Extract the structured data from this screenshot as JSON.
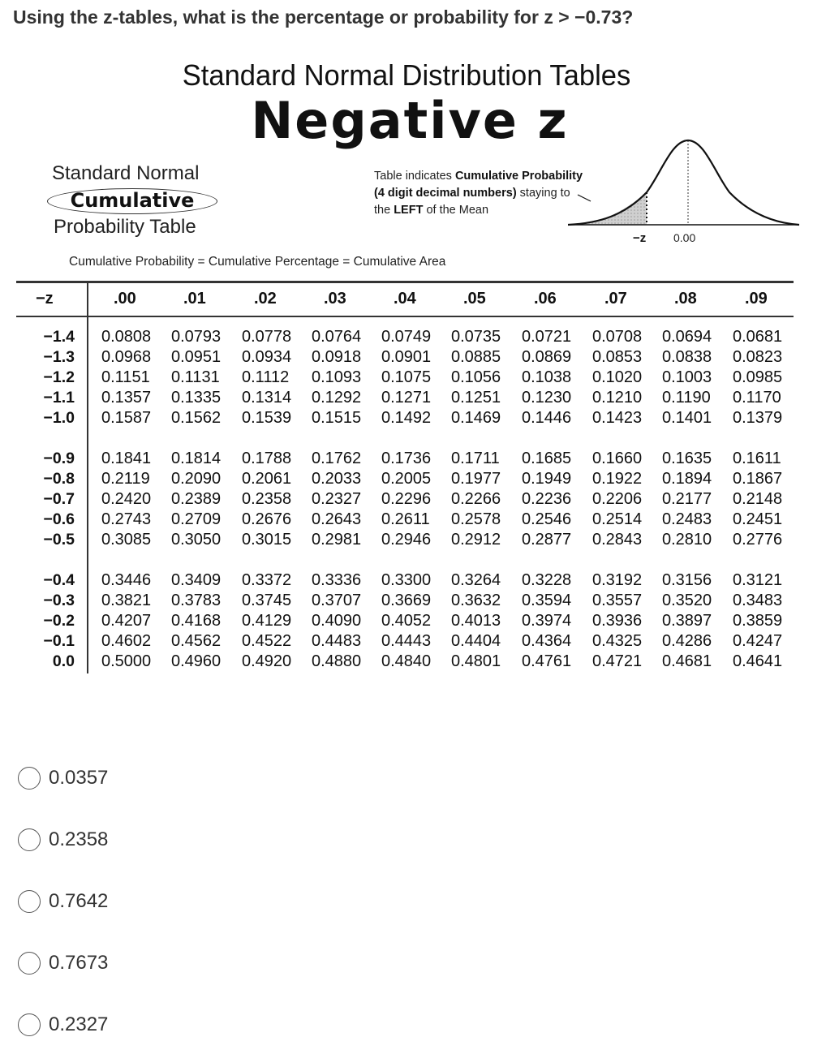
{
  "question": "Using the z-tables, what is the percentage or probability for z > −0.73?",
  "document": {
    "title": "Standard Normal Distribution Tables",
    "subtitle": "Negative z",
    "left_label_1": "Standard Normal",
    "left_label_2": "Cumulative",
    "left_label_3": "Probability Table",
    "note_line1_prefix": "Table indicates ",
    "note_line1_bold": "Cumulative Probability",
    "note_line2_bold": "(4 digit decimal numbers)",
    "note_line2_suffix": " staying to",
    "note_line3_prefix": "the ",
    "note_line3_bold": "LEFT",
    "note_line3_suffix": " of the Mean",
    "curve_label_z": "−z",
    "curve_label_mean": "0.00",
    "footnote": "Cumulative Probability = Cumulative Percentage = Cumulative Area"
  },
  "table": {
    "corner": "−z",
    "columns": [
      ".00",
      ".01",
      ".02",
      ".03",
      ".04",
      ".05",
      ".06",
      ".07",
      ".08",
      ".09"
    ],
    "groups": [
      [
        {
          "z": "−1.4",
          "values": [
            "0.0808",
            "0.0793",
            "0.0778",
            "0.0764",
            "0.0749",
            "0.0735",
            "0.0721",
            "0.0708",
            "0.0694",
            "0.0681"
          ]
        },
        {
          "z": "−1.3",
          "values": [
            "0.0968",
            "0.0951",
            "0.0934",
            "0.0918",
            "0.0901",
            "0.0885",
            "0.0869",
            "0.0853",
            "0.0838",
            "0.0823"
          ]
        },
        {
          "z": "−1.2",
          "values": [
            "0.1151",
            "0.1131",
            "0.1112",
            "0.1093",
            "0.1075",
            "0.1056",
            "0.1038",
            "0.1020",
            "0.1003",
            "0.0985"
          ]
        },
        {
          "z": "−1.1",
          "values": [
            "0.1357",
            "0.1335",
            "0.1314",
            "0.1292",
            "0.1271",
            "0.1251",
            "0.1230",
            "0.1210",
            "0.1190",
            "0.1170"
          ]
        },
        {
          "z": "−1.0",
          "values": [
            "0.1587",
            "0.1562",
            "0.1539",
            "0.1515",
            "0.1492",
            "0.1469",
            "0.1446",
            "0.1423",
            "0.1401",
            "0.1379"
          ]
        }
      ],
      [
        {
          "z": "−0.9",
          "values": [
            "0.1841",
            "0.1814",
            "0.1788",
            "0.1762",
            "0.1736",
            "0.1711",
            "0.1685",
            "0.1660",
            "0.1635",
            "0.1611"
          ]
        },
        {
          "z": "−0.8",
          "values": [
            "0.2119",
            "0.2090",
            "0.2061",
            "0.2033",
            "0.2005",
            "0.1977",
            "0.1949",
            "0.1922",
            "0.1894",
            "0.1867"
          ]
        },
        {
          "z": "−0.7",
          "values": [
            "0.2420",
            "0.2389",
            "0.2358",
            "0.2327",
            "0.2296",
            "0.2266",
            "0.2236",
            "0.2206",
            "0.2177",
            "0.2148"
          ]
        },
        {
          "z": "−0.6",
          "values": [
            "0.2743",
            "0.2709",
            "0.2676",
            "0.2643",
            "0.2611",
            "0.2578",
            "0.2546",
            "0.2514",
            "0.2483",
            "0.2451"
          ]
        },
        {
          "z": "−0.5",
          "values": [
            "0.3085",
            "0.3050",
            "0.3015",
            "0.2981",
            "0.2946",
            "0.2912",
            "0.2877",
            "0.2843",
            "0.2810",
            "0.2776"
          ]
        }
      ],
      [
        {
          "z": "−0.4",
          "values": [
            "0.3446",
            "0.3409",
            "0.3372",
            "0.3336",
            "0.3300",
            "0.3264",
            "0.3228",
            "0.3192",
            "0.3156",
            "0.3121"
          ]
        },
        {
          "z": "−0.3",
          "values": [
            "0.3821",
            "0.3783",
            "0.3745",
            "0.3707",
            "0.3669",
            "0.3632",
            "0.3594",
            "0.3557",
            "0.3520",
            "0.3483"
          ]
        },
        {
          "z": "−0.2",
          "values": [
            "0.4207",
            "0.4168",
            "0.4129",
            "0.4090",
            "0.4052",
            "0.4013",
            "0.3974",
            "0.3936",
            "0.3897",
            "0.3859"
          ]
        },
        {
          "z": "−0.1",
          "values": [
            "0.4602",
            "0.4562",
            "0.4522",
            "0.4483",
            "0.4443",
            "0.4404",
            "0.4364",
            "0.4325",
            "0.4286",
            "0.4247"
          ]
        },
        {
          "z": "0.0",
          "values": [
            "0.5000",
            "0.4960",
            "0.4920",
            "0.4880",
            "0.4840",
            "0.4801",
            "0.4761",
            "0.4721",
            "0.4681",
            "0.4641"
          ]
        }
      ]
    ]
  },
  "options": [
    {
      "label": "0.0357",
      "selected": false
    },
    {
      "label": "0.2358",
      "selected": false
    },
    {
      "label": "0.7642",
      "selected": false
    },
    {
      "label": "0.7673",
      "selected": false
    },
    {
      "label": "0.2327",
      "selected": false
    }
  ]
}
